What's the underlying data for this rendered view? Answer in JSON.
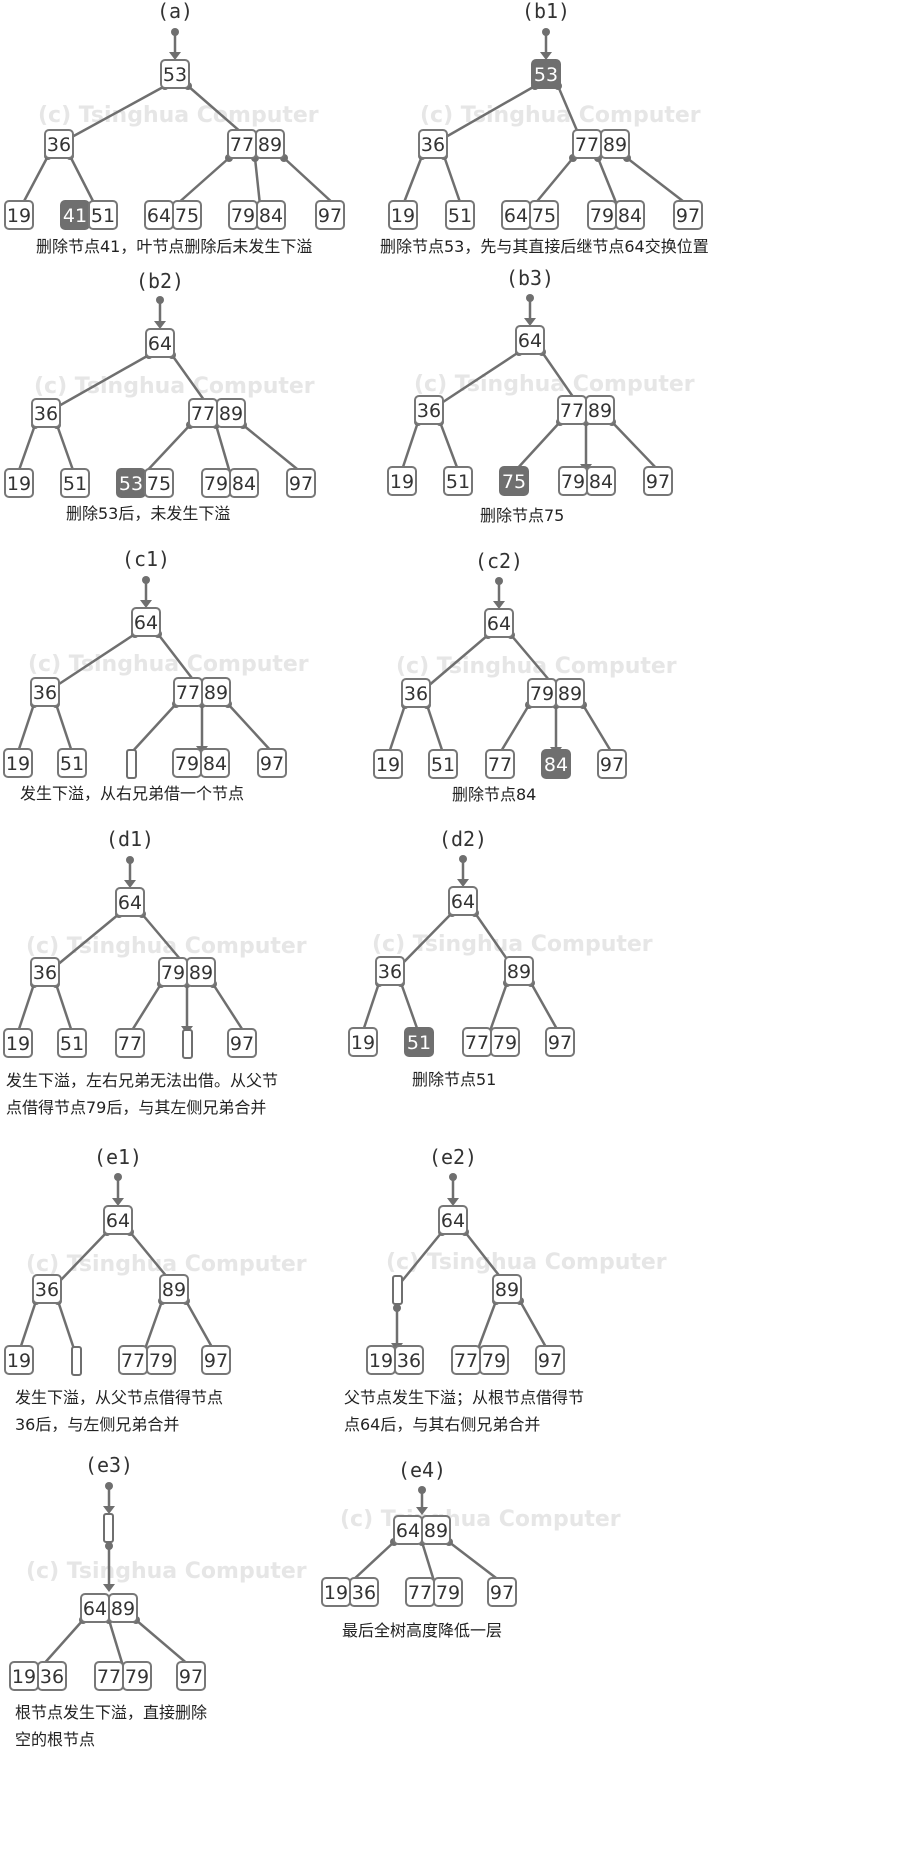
{
  "watermark": "(c) Tsinghua Computer",
  "panels": {
    "a": {
      "label": "(a)",
      "caption": [
        "删除节点41，叶节点删除后未发生下溢"
      ]
    },
    "b1": {
      "label": "(b1)",
      "caption": [
        "删除节点53，先与其直接后继节点64交换位置"
      ]
    },
    "b2": {
      "label": "(b2)",
      "caption": [
        "删除53后，未发生下溢"
      ]
    },
    "b3": {
      "label": "(b3)",
      "caption": [
        "删除节点75"
      ]
    },
    "c1": {
      "label": "(c1)",
      "caption": [
        "发生下溢，从右兄弟借一个节点"
      ]
    },
    "c2": {
      "label": "(c2)",
      "caption": [
        "删除节点84"
      ]
    },
    "d1": {
      "label": "(d1)",
      "caption": [
        "发生下溢，左右兄弟无法出借。从父节",
        "点借得节点79后，与其左侧兄弟合并"
      ]
    },
    "d2": {
      "label": "(d2)",
      "caption": [
        "删除节点51"
      ]
    },
    "e1": {
      "label": "(e1)",
      "caption": [
        "发生下溢，从父节点借得节点",
        "36后，与左侧兄弟合并"
      ]
    },
    "e2": {
      "label": "(e2)",
      "caption": [
        "父节点发生下溢；从根节点借得节",
        "点64后，与其右侧兄弟合并"
      ]
    },
    "e3": {
      "label": "(e3)",
      "caption": [
        "根节点发生下溢，直接删除",
        "空的根节点"
      ]
    },
    "e4": {
      "label": "(e4)",
      "caption": [
        "最后全树高度降低一层"
      ]
    }
  },
  "keys": {
    "a": {
      "root": [
        "53"
      ],
      "l": [
        "36"
      ],
      "r": [
        "77",
        "89"
      ],
      "ll": [
        "19"
      ],
      "lr": [
        "41",
        "51"
      ],
      "rl": [
        "64",
        "75"
      ],
      "rm": [
        "79",
        "84"
      ],
      "rr": [
        "97"
      ]
    },
    "b1": {
      "root": [
        "53"
      ],
      "l": [
        "36"
      ],
      "r": [
        "77",
        "89"
      ],
      "ll": [
        "19"
      ],
      "lr": [
        "51"
      ],
      "rl": [
        "64",
        "75"
      ],
      "rm": [
        "79",
        "84"
      ],
      "rr": [
        "97"
      ]
    },
    "b2": {
      "root": [
        "64"
      ],
      "l": [
        "36"
      ],
      "r": [
        "77",
        "89"
      ],
      "ll": [
        "19"
      ],
      "lr": [
        "51"
      ],
      "rl": [
        "53",
        "75"
      ],
      "rm": [
        "79",
        "84"
      ],
      "rr": [
        "97"
      ]
    },
    "b3": {
      "root": [
        "64"
      ],
      "l": [
        "36"
      ],
      "r": [
        "77",
        "89"
      ],
      "ll": [
        "19"
      ],
      "lr": [
        "51"
      ],
      "rl": [
        "75"
      ],
      "rm": [
        "79",
        "84"
      ],
      "rr": [
        "97"
      ]
    },
    "c1": {
      "root": [
        "64"
      ],
      "l": [
        "36"
      ],
      "r": [
        "77",
        "89"
      ],
      "ll": [
        "19"
      ],
      "lr": [
        "51"
      ],
      "rm": [
        "79",
        "84"
      ],
      "rr": [
        "97"
      ]
    },
    "c2": {
      "root": [
        "64"
      ],
      "l": [
        "36"
      ],
      "r": [
        "79",
        "89"
      ],
      "ll": [
        "19"
      ],
      "lr": [
        "51"
      ],
      "rl": [
        "77"
      ],
      "rm": [
        "84"
      ],
      "rr": [
        "97"
      ]
    },
    "d1": {
      "root": [
        "64"
      ],
      "l": [
        "36"
      ],
      "r": [
        "79",
        "89"
      ],
      "ll": [
        "19"
      ],
      "lr": [
        "51"
      ],
      "rl": [
        "77"
      ],
      "rr": [
        "97"
      ]
    },
    "d2": {
      "root": [
        "64"
      ],
      "l": [
        "36"
      ],
      "r": [
        "89"
      ],
      "ll": [
        "19"
      ],
      "lr": [
        "51"
      ],
      "rl": [
        "77",
        "79"
      ],
      "rr": [
        "97"
      ]
    },
    "e1": {
      "root": [
        "64"
      ],
      "l": [
        "36"
      ],
      "r": [
        "89"
      ],
      "ll": [
        "19"
      ],
      "rl": [
        "77",
        "79"
      ],
      "rr": [
        "97"
      ]
    },
    "e2": {
      "root": [
        "64"
      ],
      "r": [
        "89"
      ],
      "lm": [
        "19",
        "36"
      ],
      "rl": [
        "77",
        "79"
      ],
      "rr": [
        "97"
      ]
    },
    "e3": {
      "m": [
        "64",
        "89"
      ],
      "l": [
        "19",
        "36"
      ],
      "c": [
        "77",
        "79"
      ],
      "r": [
        "97"
      ]
    },
    "e4": {
      "m": [
        "64",
        "89"
      ],
      "l": [
        "19",
        "36"
      ],
      "c": [
        "77",
        "79"
      ],
      "r": [
        "97"
      ]
    }
  }
}
